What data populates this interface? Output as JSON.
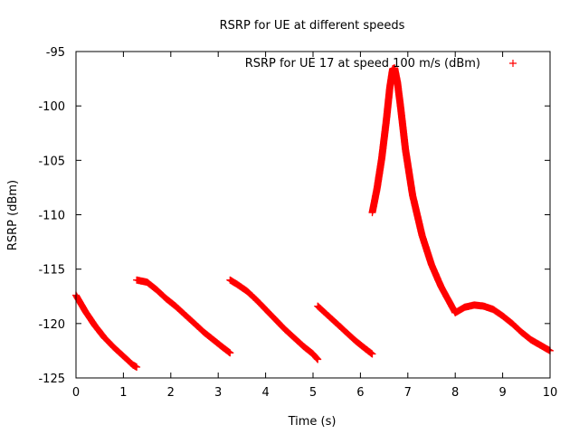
{
  "chart_data": {
    "type": "scatter",
    "title": "RSRP for UE at different speeds",
    "xlabel": "Time (s)",
    "ylabel": "RSRP (dBm)",
    "xlim": [
      0,
      10
    ],
    "ylim": [
      -125,
      -95
    ],
    "xticks": [
      0,
      1,
      2,
      3,
      4,
      5,
      6,
      7,
      8,
      9,
      10
    ],
    "yticks": [
      -95,
      -100,
      -105,
      -110,
      -115,
      -120,
      -125
    ],
    "grid": false,
    "legend_position": "top-right",
    "series": [
      {
        "name": "RSRP for UE 17 at speed 100 m/s (dBm)",
        "color": "#ff0000",
        "marker": "plus",
        "segments": [
          {
            "x": [
              0.0,
              0.2,
              0.4,
              0.6,
              0.8,
              1.0,
              1.2,
              1.28
            ],
            "y": [
              -117.4,
              -118.9,
              -120.2,
              -121.3,
              -122.2,
              -123.0,
              -123.8,
              -124.0
            ]
          },
          {
            "x": [
              1.28,
              1.5,
              1.7,
              1.9,
              2.1,
              2.3,
              2.5,
              2.7,
              2.9,
              3.1,
              3.25
            ],
            "y": [
              -116.0,
              -116.2,
              -116.9,
              -117.7,
              -118.4,
              -119.2,
              -120.0,
              -120.8,
              -121.5,
              -122.2,
              -122.7
            ]
          },
          {
            "x": [
              3.25,
              3.4,
              3.6,
              3.8,
              4.0,
              4.2,
              4.4,
              4.6,
              4.8,
              5.0,
              5.1
            ],
            "y": [
              -116.0,
              -116.4,
              -117.0,
              -117.8,
              -118.7,
              -119.6,
              -120.5,
              -121.3,
              -122.1,
              -122.8,
              -123.3
            ]
          },
          {
            "x": [
              5.1,
              5.3,
              5.5,
              5.7,
              5.9,
              6.1,
              6.25
            ],
            "y": [
              -118.4,
              -119.2,
              -120.0,
              -120.8,
              -121.6,
              -122.3,
              -122.8
            ]
          },
          {
            "x": [
              6.25,
              6.35,
              6.45,
              6.55,
              6.62,
              6.68,
              6.72,
              6.78,
              6.85,
              6.95,
              7.1,
              7.3,
              7.5,
              7.7,
              7.9,
              8.0
            ],
            "y": [
              -109.8,
              -107.6,
              -104.8,
              -101.2,
              -98.3,
              -96.6,
              -96.5,
              -97.8,
              -100.2,
              -104.0,
              -108.2,
              -111.9,
              -114.6,
              -116.6,
              -118.2,
              -119.0
            ]
          },
          {
            "x": [
              8.0,
              8.2,
              8.4,
              8.6,
              8.8,
              9.0,
              9.2,
              9.4,
              9.6,
              9.8,
              10.0
            ],
            "y": [
              -119.0,
              -118.5,
              -118.3,
              -118.4,
              -118.7,
              -119.3,
              -120.0,
              -120.8,
              -121.5,
              -122.0,
              -122.5
            ]
          }
        ]
      }
    ]
  }
}
